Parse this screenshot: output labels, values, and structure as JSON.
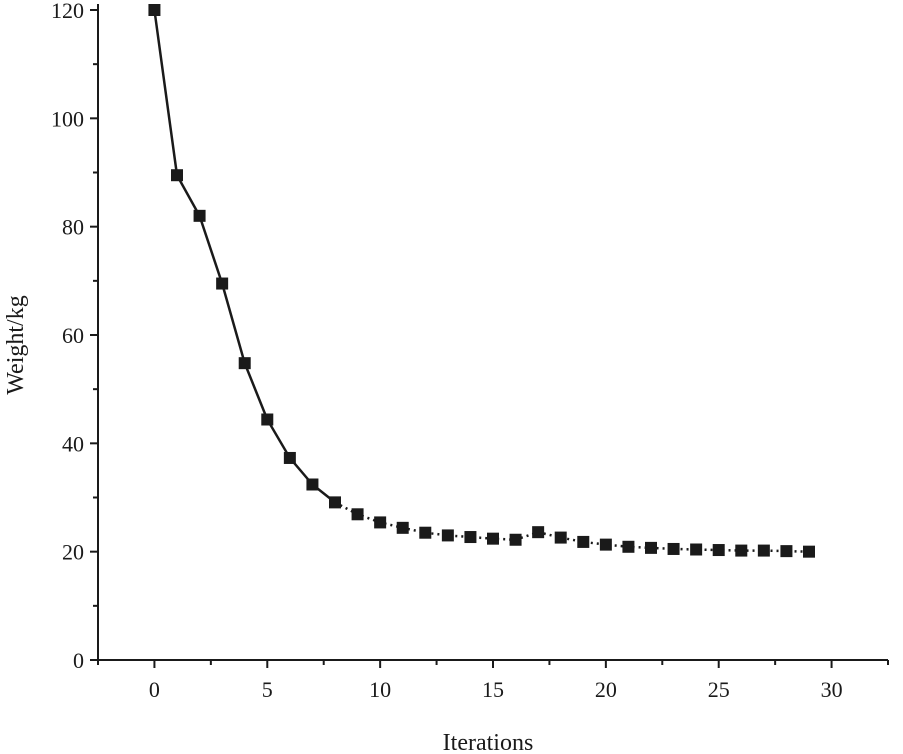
{
  "chart_data": {
    "type": "line",
    "title": "",
    "xlabel": "Iterations",
    "ylabel": "Weight/kg",
    "xlim": [
      -2.5,
      32.5
    ],
    "ylim": [
      0,
      120
    ],
    "xticks": [
      0,
      5,
      10,
      15,
      20,
      25,
      30
    ],
    "yticks": [
      0,
      20,
      40,
      60,
      80,
      100,
      120
    ],
    "grid": false,
    "marker": "square",
    "series": [
      {
        "x": [
          0,
          1,
          2,
          3,
          4,
          5,
          6,
          7,
          8,
          9,
          10,
          11,
          12,
          13,
          14,
          15,
          16,
          17,
          18,
          19,
          20,
          21,
          22,
          23,
          24,
          25,
          26,
          27,
          28,
          29
        ],
        "y": [
          120,
          89.5,
          82,
          69.5,
          54.8,
          44.4,
          37.3,
          32.4,
          29.1,
          26.9,
          25.4,
          24.4,
          23.5,
          23,
          22.7,
          22.4,
          22.2,
          23.6,
          22.6,
          21.8,
          21.3,
          20.9,
          20.7,
          20.5,
          20.4,
          20.3,
          20.2,
          20.2,
          20.1,
          20
        ]
      }
    ]
  }
}
